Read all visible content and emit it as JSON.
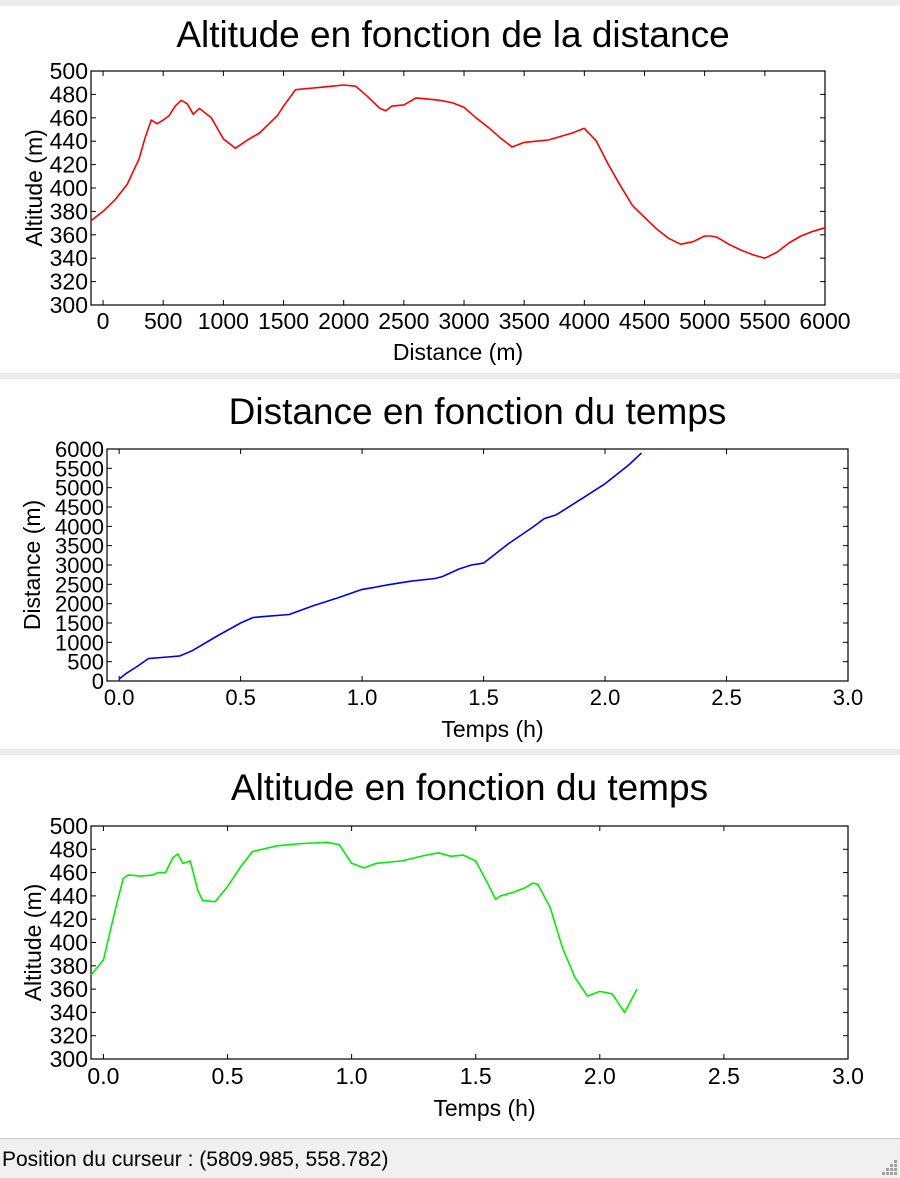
{
  "colors": {
    "chart1": "#ff0000",
    "chart2": "#0000ee",
    "chart3": "#00ee00"
  },
  "chart_data": [
    {
      "type": "line",
      "title": "Altitude en fonction de la distance",
      "xlabel": "Distance (m)",
      "ylabel": "Altitude (m)",
      "xlim": [
        -100,
        6000
      ],
      "ylim": [
        300,
        500
      ],
      "xticks": [
        0,
        500,
        1000,
        1500,
        2000,
        2500,
        3000,
        3500,
        4000,
        4500,
        5000,
        5500,
        6000
      ],
      "xtick_labels": [
        "0",
        "500",
        "1000",
        "1500",
        "2000",
        "2500",
        "3000",
        "3500",
        "4000",
        "4500",
        "5000",
        "5500",
        "6000"
      ],
      "yticks": [
        300,
        320,
        340,
        360,
        380,
        400,
        420,
        440,
        460,
        480,
        500
      ],
      "ytick_labels": [
        "300",
        "320",
        "340",
        "360",
        "380",
        "400",
        "420",
        "440",
        "460",
        "480",
        "500"
      ],
      "grid": false,
      "series": [
        {
          "color": "#ff0000",
          "x": [
            -100,
            0,
            100,
            200,
            300,
            350,
            400,
            450,
            500,
            550,
            600,
            650,
            700,
            750,
            800,
            900,
            1000,
            1100,
            1200,
            1300,
            1400,
            1450,
            1500,
            1600,
            1700,
            1800,
            1900,
            2000,
            2100,
            2200,
            2300,
            2350,
            2400,
            2500,
            2600,
            2700,
            2800,
            2900,
            3000,
            3100,
            3200,
            3300,
            3400,
            3500,
            3600,
            3700,
            3800,
            3900,
            4000,
            4100,
            4200,
            4300,
            4400,
            4500,
            4600,
            4700,
            4800,
            4900,
            5000,
            5050,
            5100,
            5200,
            5300,
            5400,
            5500,
            5600,
            5700,
            5800,
            5900,
            6000
          ],
          "y": [
            372,
            380,
            390,
            403,
            425,
            443,
            458,
            455,
            458,
            462,
            470,
            475,
            472,
            463,
            468,
            460,
            442,
            434,
            441,
            447,
            457,
            462,
            470,
            484,
            485,
            486,
            487,
            488,
            487,
            478,
            468,
            466,
            470,
            471,
            477,
            476,
            475,
            473,
            469,
            460,
            452,
            443,
            435,
            439,
            440,
            441,
            444,
            447,
            451,
            440,
            420,
            402,
            385,
            375,
            365,
            357,
            352,
            354,
            359,
            359,
            358,
            352,
            347,
            343,
            340,
            345,
            353,
            359,
            363,
            366
          ]
        }
      ]
    },
    {
      "type": "line",
      "title": "Distance en fonction du temps",
      "xlabel": "Temps (h)",
      "ylabel": "Distance (m)",
      "xlim": [
        -0.05,
        3.0
      ],
      "ylim": [
        0,
        6000
      ],
      "xticks": [
        0,
        0.5,
        1,
        1.5,
        2,
        2.5,
        3
      ],
      "xtick_labels": [
        "0.0",
        "0.5",
        "1.0",
        "1.5",
        "2.0",
        "2.5",
        "3.0"
      ],
      "yticks": [
        0,
        500,
        1000,
        1500,
        2000,
        2500,
        3000,
        3500,
        4000,
        4500,
        5000,
        5500,
        6000
      ],
      "ytick_labels": [
        "0",
        "500",
        "1000",
        "1500",
        "2000",
        "2500",
        "3000",
        "3500",
        "4000",
        "4500",
        "5000",
        "5500",
        "6000"
      ],
      "grid": false,
      "series": [
        {
          "color": "#0000ee",
          "x": [
            0,
            0.03,
            0.08,
            0.12,
            0.2,
            0.25,
            0.3,
            0.4,
            0.5,
            0.55,
            0.6,
            0.7,
            0.8,
            0.9,
            1.0,
            1.05,
            1.1,
            1.2,
            1.3,
            1.33,
            1.4,
            1.45,
            1.5,
            1.6,
            1.7,
            1.75,
            1.8,
            1.9,
            2.0,
            2.1,
            2.15
          ],
          "y": [
            50,
            200,
            400,
            580,
            620,
            650,
            780,
            1150,
            1500,
            1640,
            1670,
            1720,
            1950,
            2150,
            2370,
            2420,
            2480,
            2580,
            2650,
            2700,
            2900,
            3000,
            3050,
            3540,
            3970,
            4200,
            4300,
            4700,
            5100,
            5600,
            5900
          ]
        }
      ]
    },
    {
      "type": "line",
      "title": "Altitude en fonction du temps",
      "xlabel": "Temps (h)",
      "ylabel": "Altitude (m)",
      "xlim": [
        -0.05,
        3.0
      ],
      "ylim": [
        300,
        500
      ],
      "xticks": [
        0,
        0.5,
        1,
        1.5,
        2,
        2.5,
        3
      ],
      "xtick_labels": [
        "0.0",
        "0.5",
        "1.0",
        "1.5",
        "2.0",
        "2.5",
        "3.0"
      ],
      "yticks": [
        300,
        320,
        340,
        360,
        380,
        400,
        420,
        440,
        460,
        480,
        500
      ],
      "ytick_labels": [
        "300",
        "320",
        "340",
        "360",
        "380",
        "400",
        "420",
        "440",
        "460",
        "480",
        "500"
      ],
      "grid": false,
      "series": [
        {
          "color": "#00ee00",
          "x": [
            -0.05,
            0,
            0.05,
            0.08,
            0.1,
            0.15,
            0.2,
            0.22,
            0.25,
            0.28,
            0.3,
            0.32,
            0.35,
            0.38,
            0.4,
            0.45,
            0.5,
            0.55,
            0.6,
            0.7,
            0.8,
            0.9,
            0.95,
            1.0,
            1.05,
            1.1,
            1.2,
            1.3,
            1.35,
            1.4,
            1.45,
            1.5,
            1.55,
            1.58,
            1.6,
            1.65,
            1.7,
            1.73,
            1.75,
            1.8,
            1.85,
            1.9,
            1.95,
            2.0,
            2.05,
            2.1,
            2.15
          ],
          "y": [
            372,
            385,
            430,
            455,
            458,
            457,
            458,
            460,
            460,
            473,
            476,
            468,
            470,
            445,
            436,
            435,
            448,
            464,
            478,
            483,
            485,
            486,
            484,
            468,
            464,
            468,
            470,
            475,
            477,
            474,
            475,
            470,
            450,
            437,
            440,
            443,
            447,
            451,
            450,
            430,
            395,
            370,
            354,
            358,
            356,
            340,
            360
          ]
        }
      ]
    }
  ],
  "status": {
    "label": "Position du curseur :",
    "value": "(5809.985, 558.782)"
  }
}
